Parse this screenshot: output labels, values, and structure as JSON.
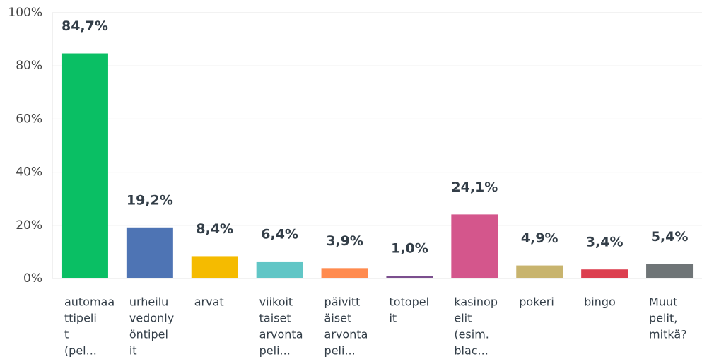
{
  "chart_data": {
    "type": "bar",
    "categories": [
      [
        "automaa",
        "ttipeli",
        "t",
        "(pel..."
      ],
      [
        "urheilu",
        "vedonly",
        "öntipel",
        "it"
      ],
      [
        "arvat"
      ],
      [
        "viikoit",
        "taiset",
        "arvonta",
        "peli..."
      ],
      [
        "päivitt",
        "äiset",
        "arvonta",
        "peli..."
      ],
      [
        "totopel",
        "it"
      ],
      [
        "kasinop",
        "elit",
        "(esim.",
        "blac..."
      ],
      [
        "pokeri"
      ],
      [
        "bingo"
      ],
      [
        "Muut",
        "pelit,",
        "mitkä?"
      ]
    ],
    "values": [
      84.7,
      19.2,
      8.4,
      6.4,
      3.9,
      1.0,
      24.1,
      4.9,
      3.4,
      5.4
    ],
    "value_labels": [
      "84,7%",
      "19,2%",
      "8,4%",
      "6,4%",
      "3,9%",
      "1,0%",
      "24,1%",
      "4,9%",
      "3,4%",
      "5,4%"
    ],
    "colors": [
      "#0abf64",
      "#4e74b4",
      "#f5bb00",
      "#61c6c6",
      "#ff8b4f",
      "#7b4f8e",
      "#d4568c",
      "#c8b46e",
      "#dc3f4f",
      "#6f7577"
    ],
    "ylim": [
      0,
      100
    ],
    "yticks": [
      {
        "value": 0,
        "label": "0%"
      },
      {
        "value": 20,
        "label": "20%"
      },
      {
        "value": 40,
        "label": "40%"
      },
      {
        "value": 60,
        "label": "60%"
      },
      {
        "value": 80,
        "label": "80%"
      },
      {
        "value": 100,
        "label": "100%"
      }
    ],
    "grid": true
  }
}
